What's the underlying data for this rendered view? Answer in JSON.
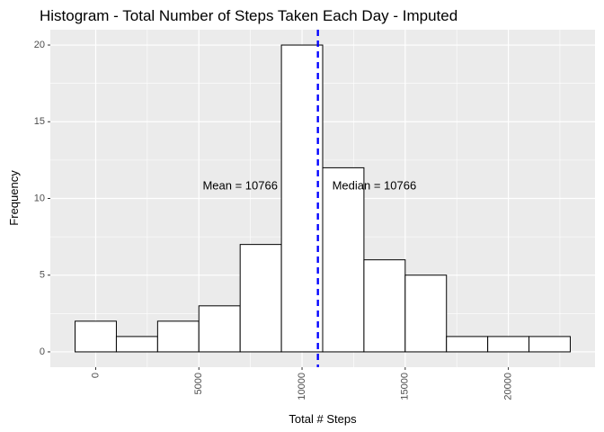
{
  "chart_data": {
    "type": "bar",
    "title": "Histogram - Total Number of Steps Taken Each Day - Imputed",
    "xlabel": "Total # Steps",
    "ylabel": "Frequency",
    "bin_width": 2000,
    "bins": [
      {
        "start": -1000,
        "end": 1000,
        "count": 2
      },
      {
        "start": 1000,
        "end": 3000,
        "count": 1
      },
      {
        "start": 3000,
        "end": 5000,
        "count": 2
      },
      {
        "start": 5000,
        "end": 7000,
        "count": 3
      },
      {
        "start": 7000,
        "end": 9000,
        "count": 7
      },
      {
        "start": 9000,
        "end": 11000,
        "count": 20
      },
      {
        "start": 11000,
        "end": 13000,
        "count": 12
      },
      {
        "start": 13000,
        "end": 15000,
        "count": 6
      },
      {
        "start": 15000,
        "end": 17000,
        "count": 5
      },
      {
        "start": 17000,
        "end": 19000,
        "count": 1
      },
      {
        "start": 19000,
        "end": 21000,
        "count": 1
      },
      {
        "start": 21000,
        "end": 23000,
        "count": 1
      }
    ],
    "xlim": [
      -2200,
      24200
    ],
    "ylim": [
      -1,
      21
    ],
    "x_ticks": [
      0,
      5000,
      10000,
      15000,
      20000
    ],
    "x_tick_labels": [
      "0",
      "5000",
      "10000",
      "15000",
      "20000"
    ],
    "y_ticks": [
      0,
      5,
      10,
      15,
      20
    ],
    "y_tick_labels": [
      "0",
      "5",
      "10",
      "15",
      "20"
    ],
    "mean_line": {
      "x": 10766,
      "color": "#0000ff",
      "style": "dashed"
    },
    "median_line": {
      "x": 10766,
      "color": "#0000ff",
      "style": "dashed"
    },
    "annotations": [
      {
        "text": "Mean = 10766",
        "x": 7000,
        "y": 10.8
      },
      {
        "text": "Median = 10766",
        "x": 13500,
        "y": 10.8
      }
    ],
    "grid": true,
    "panel_background": "#ebebeb",
    "grid_color": "#ffffff",
    "bar_fill": "#ffffff",
    "bar_stroke": "#000000"
  }
}
